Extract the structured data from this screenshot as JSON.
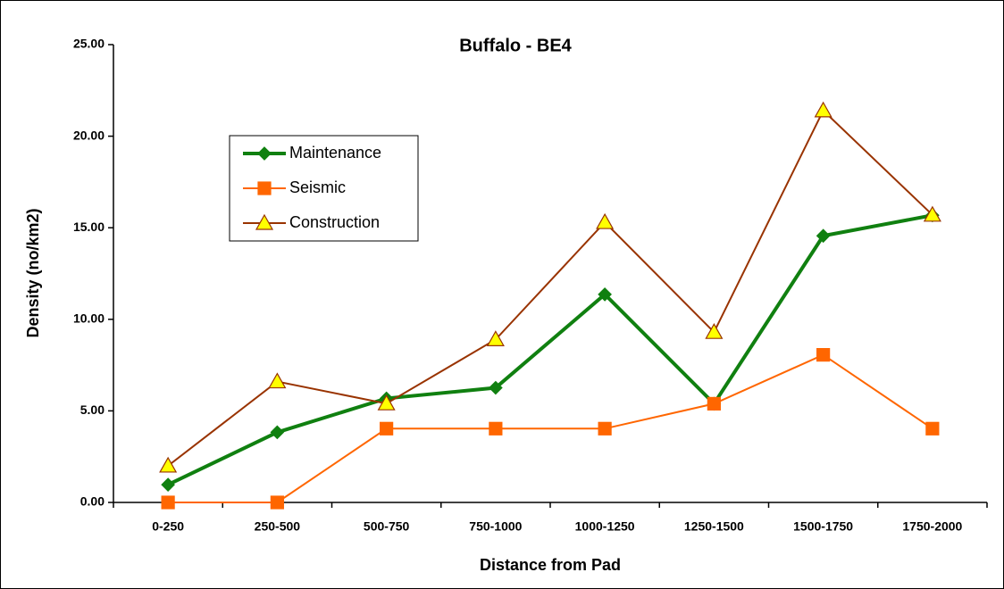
{
  "chart_data": {
    "type": "line",
    "title": "Buffalo - BE4",
    "x_label": "Distance from Pad",
    "y_label": "Density (no/km2)",
    "categories": [
      "0-250",
      "250-500",
      "500-750",
      "750-1000",
      "1000-1250",
      "1250-1500",
      "1500-1750",
      "1750-2000"
    ],
    "series": [
      {
        "name": "Maintenance",
        "color": "#108010",
        "marker": "diamond",
        "marker_fill": "#108010",
        "values": [
          0.97,
          3.83,
          5.68,
          6.26,
          11.36,
          5.39,
          14.56,
          15.68
        ]
      },
      {
        "name": "Seismic",
        "color": "#ff6600",
        "marker": "square",
        "marker_fill": "#ff6600",
        "values": [
          0,
          0,
          4.03,
          4.03,
          4.03,
          5.39,
          8.06,
          4.03
        ]
      },
      {
        "name": "Construction",
        "color": "#993300",
        "marker": "triangle",
        "marker_fill": "#ffff00",
        "values": [
          2.0,
          6.6,
          5.4,
          8.9,
          15.3,
          9.3,
          21.4,
          15.7
        ]
      }
    ],
    "ylim": [
      0,
      25
    ],
    "yticks": [
      {
        "value": 0,
        "label": "0.00"
      },
      {
        "value": 5,
        "label": "5.00"
      },
      {
        "value": 10,
        "label": "10.00"
      },
      {
        "value": 15,
        "label": "15.00"
      },
      {
        "value": 20,
        "label": "20.00"
      },
      {
        "value": 25,
        "label": "25.00"
      }
    ],
    "legend": "upper left"
  }
}
